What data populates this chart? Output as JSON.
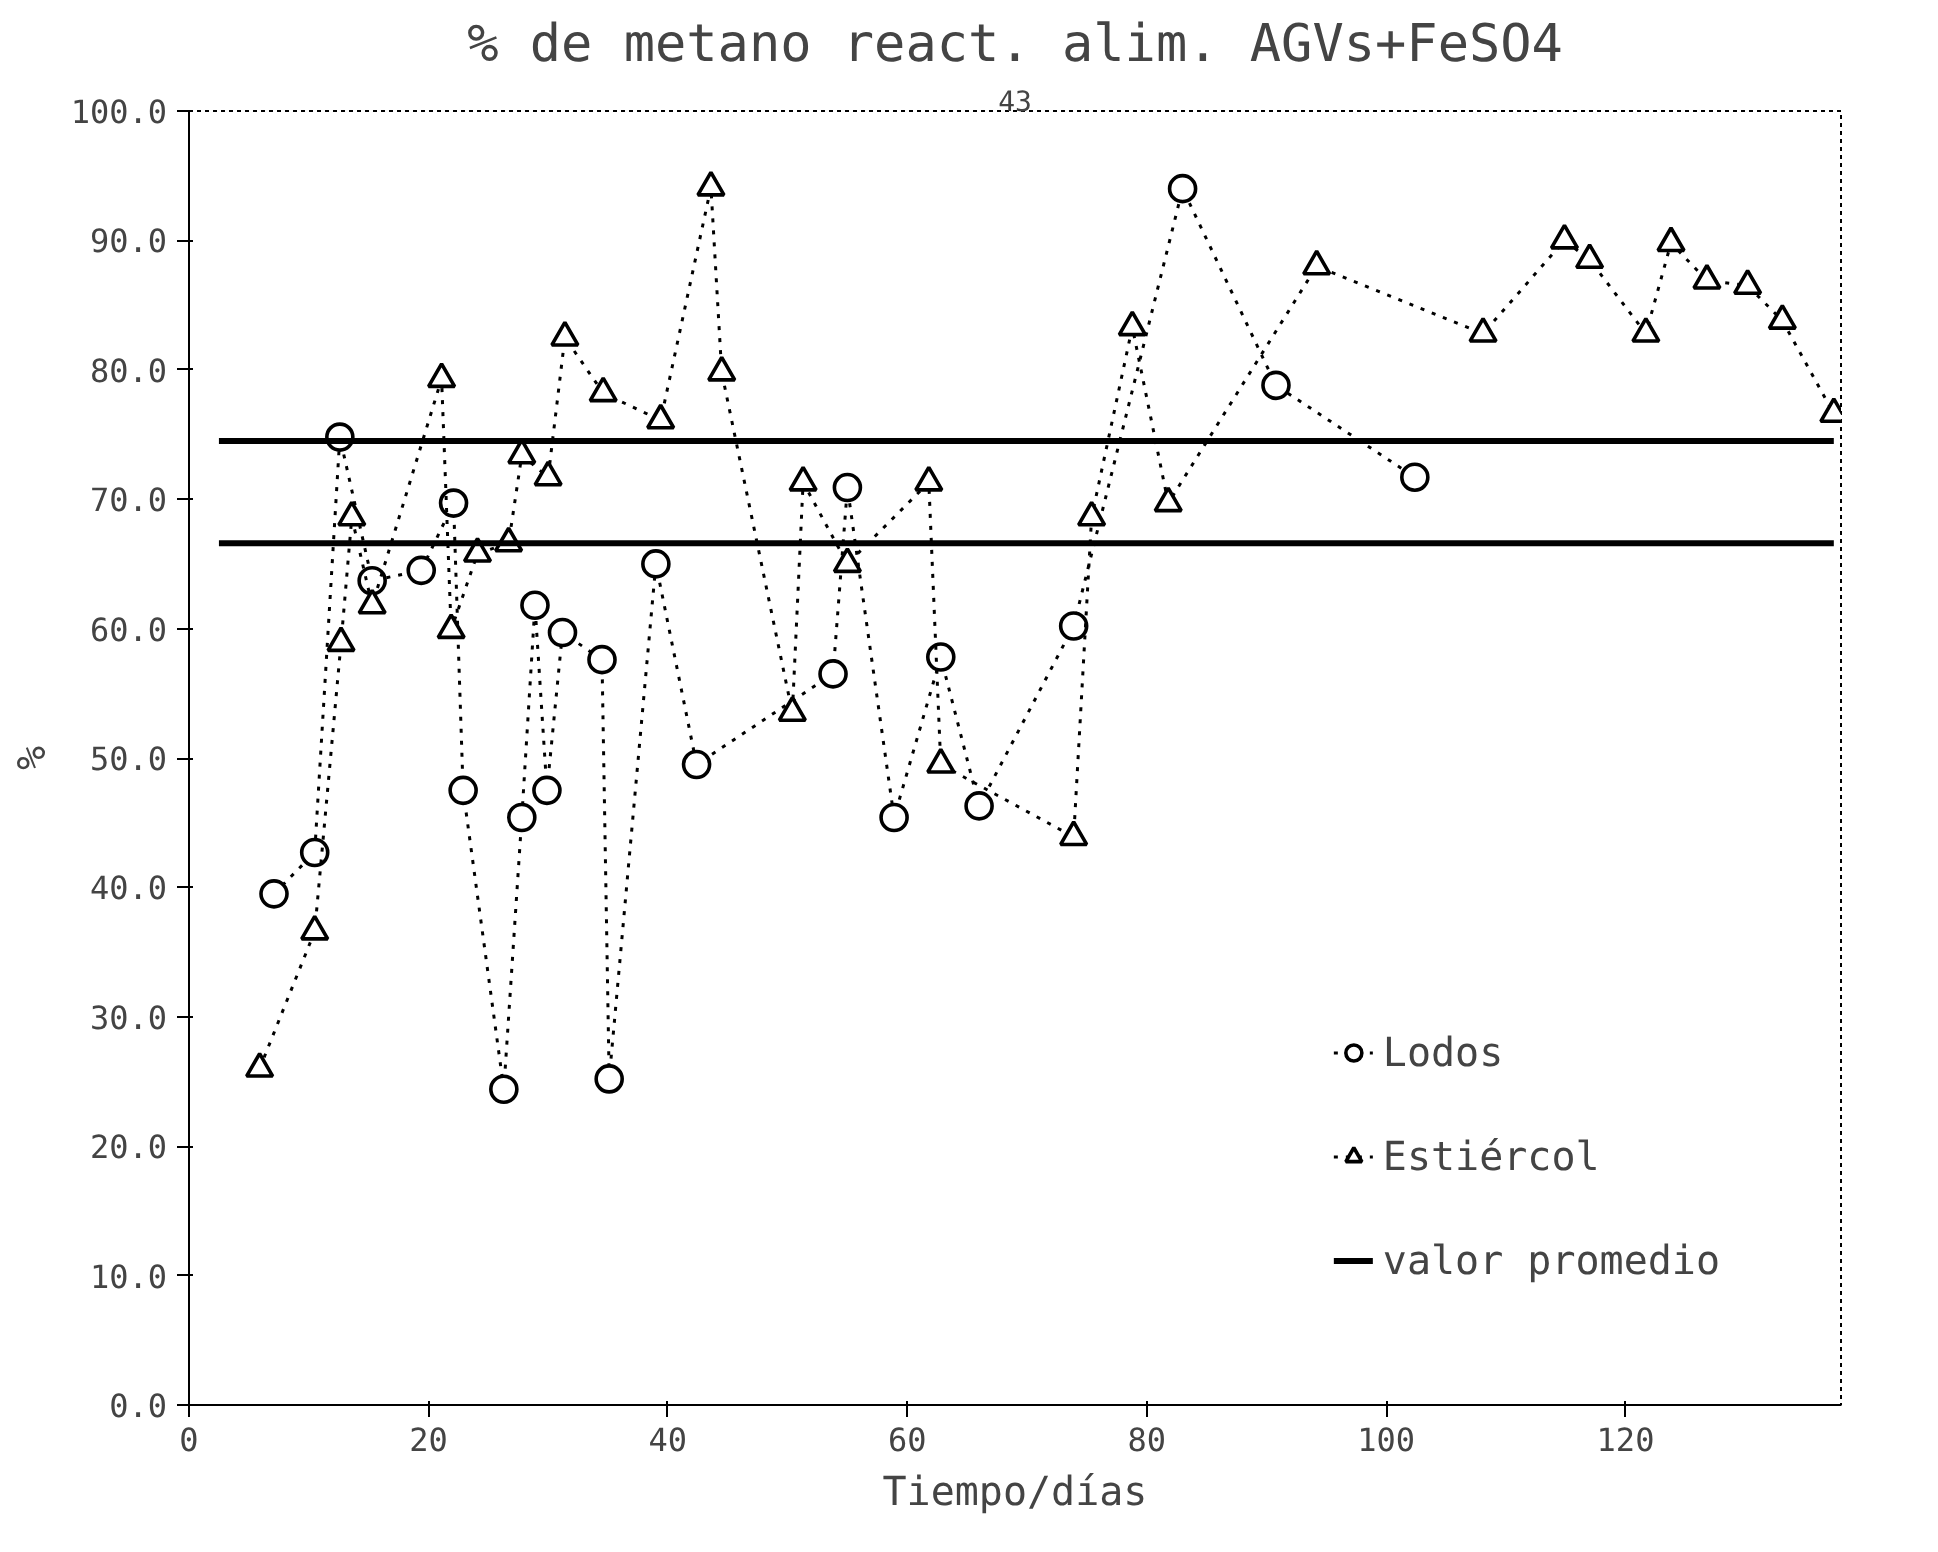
{
  "chart_data": {
    "type": "line",
    "title": "% de metano react. alim. AGVs+FeSO4",
    "xlabel": "Tiempo/días",
    "ylabel": "%",
    "annotations": [
      "43"
    ],
    "xlim": [
      0,
      138
    ],
    "xticks": [
      0,
      20,
      40,
      60,
      80,
      100,
      120
    ],
    "ylim": [
      0,
      100
    ],
    "yticks": [
      {
        "value": 0,
        "label": "0.0"
      },
      {
        "value": 10,
        "label": "10.0"
      },
      {
        "value": 20,
        "label": "20.0"
      },
      {
        "value": 30,
        "label": "30.0"
      },
      {
        "value": 40,
        "label": "40.0"
      },
      {
        "value": 50,
        "label": "50.0"
      },
      {
        "value": 60,
        "label": "60.0"
      },
      {
        "value": 70,
        "label": "70.0"
      },
      {
        "value": 80,
        "label": "80.0"
      },
      {
        "value": 90,
        "label": "90.0"
      },
      {
        "value": 100,
        "label": "100.0"
      }
    ],
    "grid": false,
    "legend": "bottom right",
    "series": [
      {
        "name": "Lodos",
        "color": "#000000",
        "marker": "circle",
        "line_style": "dotted",
        "x": [
          7.1,
          10.5,
          12.6,
          15.3,
          19.4,
          22.1,
          22.9,
          26.3,
          27.8,
          28.9,
          29.9,
          31.2,
          34.5,
          35.1,
          39.0,
          42.4,
          53.8,
          55.0,
          58.9,
          62.8,
          66.0,
          73.9,
          83.0,
          90.8,
          102.4
        ],
        "values": [
          39.5,
          42.7,
          74.8,
          63.7,
          64.5,
          69.7,
          47.5,
          24.4,
          45.4,
          61.8,
          47.5,
          59.7,
          57.6,
          25.2,
          65,
          49.5,
          56.5,
          70.9,
          45.4,
          57.8,
          46.3,
          60.2,
          94,
          78.8,
          71.7
        ]
      },
      {
        "name": "Estiércol",
        "color": "#000000",
        "marker": "triangle",
        "line_style": "dotted",
        "x": [
          5.9,
          10.5,
          12.7,
          13.6,
          15.3,
          21.1,
          21.9,
          24.1,
          26.7,
          27.8,
          30.0,
          31.4,
          34.6,
          39.4,
          43.6,
          44.5,
          50.4,
          51.3,
          55.0,
          61.8,
          62.8,
          73.9,
          75.4,
          78.8,
          81.8,
          94.2,
          108.1,
          114.9,
          117,
          121.7,
          123.8,
          126.8,
          130.2,
          133.1,
          137.4
        ],
        "values": [
          26,
          36.6,
          58.9,
          68.6,
          61.8,
          79.3,
          59.9,
          65.8,
          66.6,
          73.4,
          71.7,
          82.5,
          78.2,
          76.1,
          94.1,
          79.8,
          53.5,
          71.3,
          65,
          71.3,
          49.5,
          43.9,
          68.6,
          83.3,
          69.7,
          88,
          82.8,
          90,
          88.5,
          82.8,
          89.8,
          86.9,
          86.5,
          83.8,
          76.6
        ]
      },
      {
        "name": "valor promedio",
        "color": "#000000",
        "marker": "none",
        "line_style": "solid",
        "x": [
          2.5,
          137.4
        ],
        "values": [
          74.5,
          74.5
        ]
      },
      {
        "color": "#000000",
        "marker": "none",
        "line_style": "solid",
        "x": [
          2.5,
          137.4
        ],
        "values": [
          66.6,
          66.6
        ]
      }
    ]
  }
}
